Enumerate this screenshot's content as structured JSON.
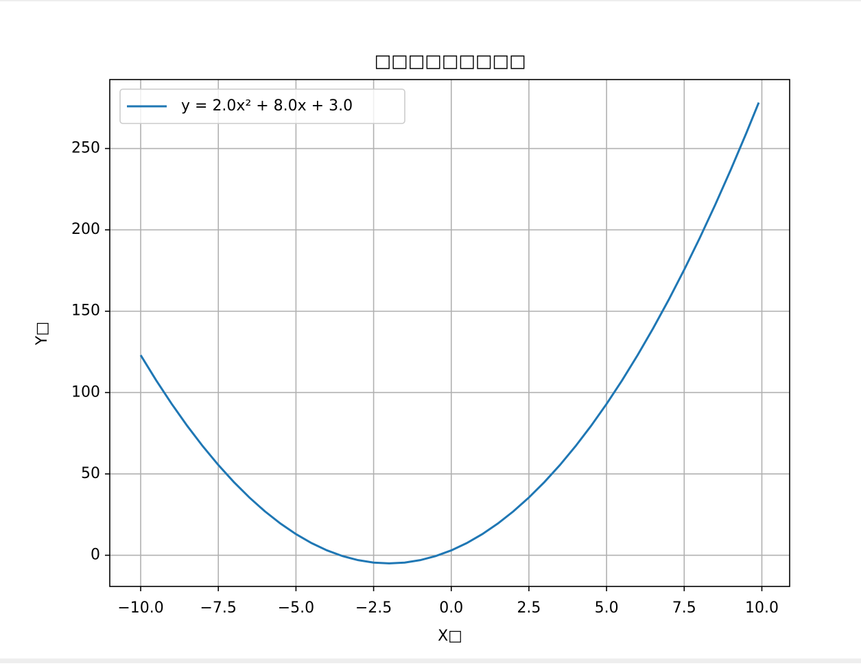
{
  "chart_data": {
    "type": "line",
    "title": "□□□□□□□□□",
    "x_label": "X□",
    "y_label": "Y□",
    "x": [
      -10,
      -9.5,
      -9,
      -8.5,
      -8,
      -7.5,
      -7,
      -6.5,
      -6,
      -5.5,
      -5,
      -4.5,
      -4,
      -3.5,
      -3,
      -2.5,
      -2,
      -1.5,
      -1,
      -0.5,
      0,
      0.5,
      1,
      1.5,
      2,
      2.5,
      3,
      3.5,
      4,
      4.5,
      5,
      5.5,
      6,
      6.5,
      7,
      7.5,
      8,
      8.5,
      9,
      9.5,
      9.9
    ],
    "series": [
      {
        "name": "y = 2.0x² + 8.0x + 3.0",
        "color": "#1f77b4",
        "values": [
          123,
          107.5,
          93,
          79.5,
          67,
          55.5,
          45,
          35.5,
          27,
          19.5,
          13,
          7.5,
          3,
          -0.5,
          -3,
          -4.5,
          -5,
          -4.5,
          -3,
          -0.5,
          3,
          7.5,
          13,
          19.5,
          27,
          35.5,
          45,
          55.5,
          67,
          79.5,
          93,
          107.5,
          123,
          139.5,
          157,
          175.5,
          195,
          215.5,
          237,
          259.5,
          278.22
        ]
      }
    ],
    "xlim": [
      -10.995,
      10.895
    ],
    "ylim": [
      -19.16,
      292.38
    ],
    "xticks": [
      {
        "value": -10,
        "label": "−10.0"
      },
      {
        "value": -7.5,
        "label": "−7.5"
      },
      {
        "value": -5,
        "label": "−5.0"
      },
      {
        "value": -2.5,
        "label": "−2.5"
      },
      {
        "value": 0,
        "label": "0.0"
      },
      {
        "value": 2.5,
        "label": "2.5"
      },
      {
        "value": 5,
        "label": "5.0"
      },
      {
        "value": 7.5,
        "label": "7.5"
      },
      {
        "value": 10,
        "label": "10.0"
      }
    ],
    "yticks": [
      0,
      50,
      100,
      150,
      200,
      250
    ],
    "grid": true,
    "legend": "upper-left"
  }
}
